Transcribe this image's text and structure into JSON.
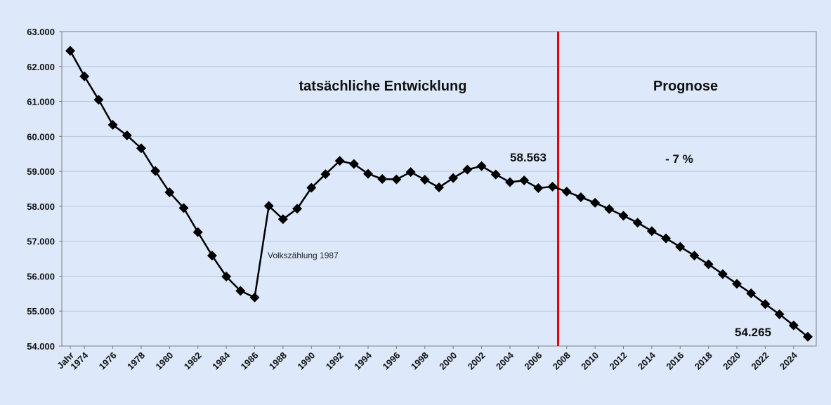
{
  "chart_data": {
    "type": "line",
    "title": "",
    "xlabel": "",
    "ylabel": "",
    "x_first_label": "Jahr",
    "x": [
      1973,
      1974,
      1975,
      1976,
      1977,
      1978,
      1979,
      1980,
      1981,
      1982,
      1983,
      1984,
      1985,
      1986,
      1987,
      1988,
      1989,
      1990,
      1991,
      1992,
      1993,
      1994,
      1995,
      1996,
      1997,
      1998,
      1999,
      2000,
      2001,
      2002,
      2003,
      2004,
      2005,
      2006,
      2007,
      2008,
      2009,
      2010,
      2011,
      2012,
      2013,
      2014,
      2015,
      2016,
      2017,
      2018,
      2019,
      2020,
      2021,
      2022,
      2023,
      2024,
      2025
    ],
    "x_ticks": [
      "Jahr",
      "1974",
      "1976",
      "1978",
      "1980",
      "1982",
      "1984",
      "1986",
      "1988",
      "1990",
      "1992",
      "1994",
      "1996",
      "1998",
      "2000",
      "2002",
      "2004",
      "2006",
      "2008",
      "2010",
      "2012",
      "2014",
      "2016",
      "2018",
      "2020",
      "2022",
      "2024"
    ],
    "series": [
      {
        "name": "",
        "color": "#000000",
        "marker": "diamond",
        "values": [
          62450,
          61720,
          61050,
          60330,
          60030,
          59660,
          59010,
          58400,
          57950,
          57260,
          56590,
          55990,
          55580,
          55390,
          58010,
          57630,
          57930,
          58530,
          58920,
          59300,
          59210,
          58930,
          58780,
          58770,
          58980,
          58760,
          58540,
          58810,
          59050,
          59150,
          58910,
          58690,
          58740,
          58520,
          58563,
          58420,
          58260,
          58100,
          57920,
          57730,
          57530,
          57290,
          57080,
          56840,
          56590,
          56340,
          56060,
          55780,
          55510,
          55200,
          54910,
          54590,
          54265
        ]
      }
    ],
    "ylim": [
      54000,
      63000
    ],
    "y_ticks": [
      "54.000",
      "55.000",
      "56.000",
      "57.000",
      "58.000",
      "59.000",
      "60.000",
      "61.000",
      "62.000",
      "63.000"
    ],
    "divider_year": 2007,
    "divider_color": "#e00000",
    "grid": true,
    "annotations": {
      "actual_label": "tatsächliche Entwicklung",
      "forecast_label": "Prognose",
      "change_label": "- 7 %",
      "value_2007": "58.563",
      "value_2025": "54.265",
      "census_note": "Volkszählung 1987"
    }
  }
}
